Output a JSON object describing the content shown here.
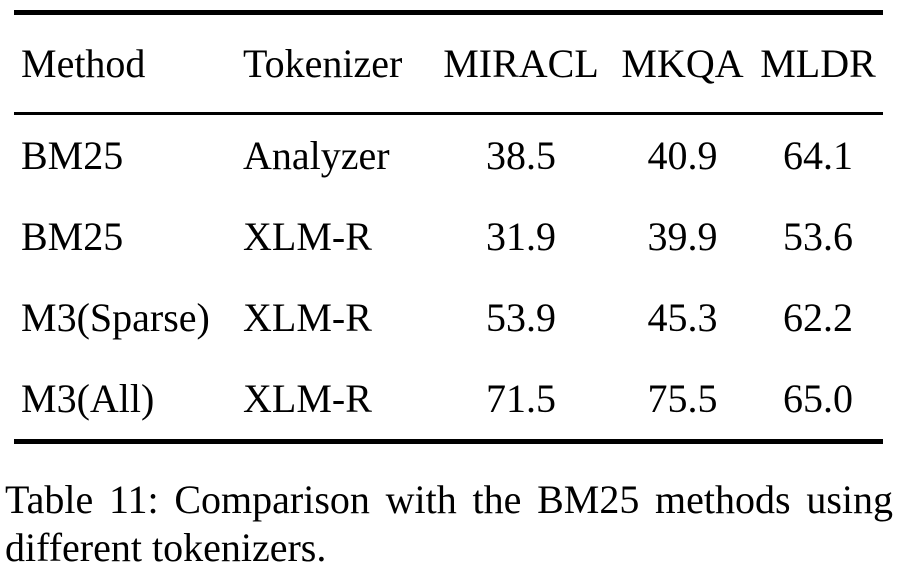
{
  "page": {
    "background_color": "#ffffff",
    "text_color": "#000000",
    "rule_color": "#000000"
  },
  "table": {
    "columns": [
      {
        "label": "Method"
      },
      {
        "label": "Tokenizer"
      },
      {
        "label": "MIRACL"
      },
      {
        "label": "MKQA"
      },
      {
        "label": "MLDR"
      }
    ],
    "rows": [
      {
        "method": "BM25",
        "tokenizer": "Analyzer",
        "miracl": "38.5",
        "mkqa": "40.9",
        "mldr": "64.1"
      },
      {
        "method": "BM25",
        "tokenizer": "XLM-R",
        "miracl": "31.9",
        "mkqa": "39.9",
        "mldr": "53.6"
      },
      {
        "method": "M3(Sparse)",
        "tokenizer": "XLM-R",
        "miracl": "53.9",
        "mkqa": "45.3",
        "mldr": "62.2"
      },
      {
        "method": "M3(All)",
        "tokenizer": "XLM-R",
        "miracl": "71.5",
        "mkqa": "75.5",
        "mldr": "65.0"
      }
    ]
  },
  "caption": {
    "line1": "Table 11: Comparison with the BM25 methods using",
    "line2": "different tokenizers."
  }
}
